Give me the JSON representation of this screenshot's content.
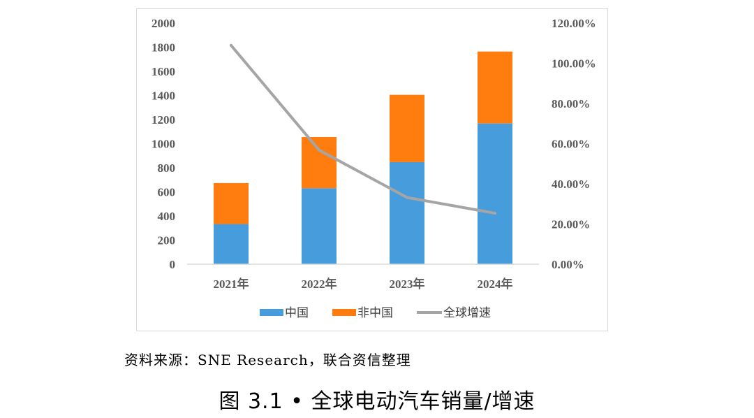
{
  "chart_data": {
    "type": "bar",
    "stacked": true,
    "categories": [
      "2021年",
      "2022年",
      "2023年",
      "2024年"
    ],
    "series": [
      {
        "name": "中国",
        "values": [
          333,
          630,
          847,
          1167
        ],
        "color": "#479cdc",
        "axis": "left"
      },
      {
        "name": "非中国",
        "values": [
          340,
          425,
          558,
          597
        ],
        "color": "#ff7c0f",
        "axis": "left"
      },
      {
        "name": "全球增速",
        "type": "line",
        "values": [
          108.9,
          56.8,
          33.2,
          25.4
        ],
        "color": "#a5a5a5",
        "axis": "right"
      }
    ],
    "y_left": {
      "ylim": [
        0,
        2000
      ],
      "ticks": [
        "0",
        "200",
        "400",
        "600",
        "800",
        "1000",
        "1200",
        "1400",
        "1600",
        "1800",
        "2000"
      ]
    },
    "y_right": {
      "ylim": [
        0,
        120
      ],
      "ticks": [
        "0.00%",
        "20.00%",
        "40.00%",
        "60.00%",
        "80.00%",
        "100.00%",
        "120.00%"
      ]
    },
    "grid": false,
    "legend": "bottom"
  },
  "source": "资料来源：SNE Research，联合资信整理",
  "caption": "图 3.1 • 全球电动汽车销量/增速"
}
